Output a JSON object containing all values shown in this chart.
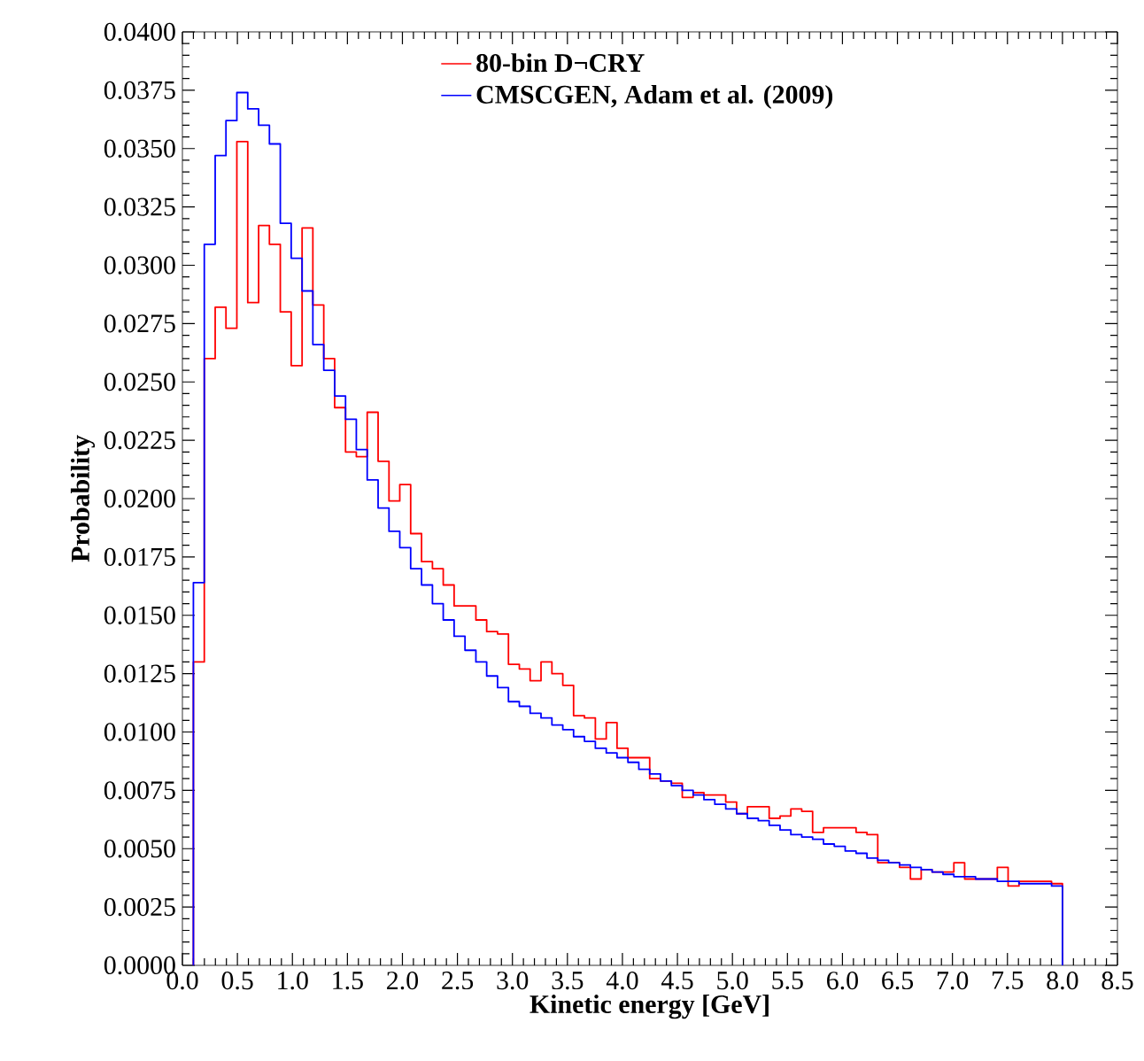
{
  "chart_data": {
    "type": "histogram",
    "xlabel": "Kinetic energy [GeV]",
    "ylabel": "Probability",
    "bins": [
      0.1,
      0.199,
      0.298,
      0.396,
      0.495,
      0.594,
      0.693,
      0.791,
      0.89,
      0.989,
      1.088,
      1.186,
      1.285,
      1.384,
      1.483,
      1.581,
      1.68,
      1.779,
      1.878,
      1.976,
      2.075,
      2.174,
      2.273,
      2.371,
      2.47,
      2.569,
      2.668,
      2.766,
      2.865,
      2.964,
      3.063,
      3.161,
      3.26,
      3.359,
      3.458,
      3.556,
      3.655,
      3.754,
      3.853,
      3.951,
      4.05,
      4.149,
      4.248,
      4.346,
      4.445,
      4.544,
      4.643,
      4.741,
      4.84,
      4.939,
      5.038,
      5.136,
      5.235,
      5.334,
      5.433,
      5.531,
      5.63,
      5.729,
      5.828,
      5.926,
      6.025,
      6.124,
      6.223,
      6.321,
      6.42,
      6.519,
      6.618,
      6.716,
      6.815,
      6.914,
      7.013,
      7.111,
      7.21,
      7.309,
      7.408,
      7.506,
      7.605,
      7.704,
      7.803,
      7.901,
      8.0
    ],
    "series": [
      {
        "name": "80-bin D¬CRY",
        "color": "#ff0000",
        "values": [
          0.013,
          0.026,
          0.0282,
          0.0273,
          0.0353,
          0.0284,
          0.0317,
          0.0309,
          0.028,
          0.0257,
          0.0316,
          0.0283,
          0.026,
          0.0239,
          0.022,
          0.0218,
          0.0237,
          0.0216,
          0.0199,
          0.0206,
          0.0185,
          0.0173,
          0.017,
          0.0163,
          0.0154,
          0.0154,
          0.0148,
          0.0143,
          0.0142,
          0.0129,
          0.0127,
          0.0122,
          0.013,
          0.0125,
          0.012,
          0.0107,
          0.0106,
          0.0097,
          0.0104,
          0.0093,
          0.0089,
          0.0089,
          0.008,
          0.0079,
          0.0078,
          0.0072,
          0.0074,
          0.0073,
          0.0073,
          0.007,
          0.0065,
          0.0068,
          0.0068,
          0.0063,
          0.0064,
          0.0067,
          0.0066,
          0.0057,
          0.0059,
          0.0059,
          0.0059,
          0.0057,
          0.0056,
          0.0044,
          0.0044,
          0.0042,
          0.0037,
          0.0041,
          0.004,
          0.004,
          0.0044,
          0.0037,
          0.0037,
          0.0037,
          0.0042,
          0.0034,
          0.0036,
          0.0036,
          0.0036,
          0.0035
        ]
      },
      {
        "name": "CMSCGEN, Adam et al. (2009)",
        "color": "#0000ff",
        "values": [
          0.0164,
          0.0309,
          0.0347,
          0.0362,
          0.0374,
          0.0367,
          0.036,
          0.0352,
          0.0318,
          0.0303,
          0.0289,
          0.0266,
          0.0255,
          0.0244,
          0.0234,
          0.0221,
          0.0208,
          0.0196,
          0.0186,
          0.0179,
          0.017,
          0.0163,
          0.0155,
          0.0148,
          0.0141,
          0.0135,
          0.013,
          0.0124,
          0.0119,
          0.0113,
          0.0111,
          0.0108,
          0.0106,
          0.0103,
          0.0101,
          0.0098,
          0.0096,
          0.0093,
          0.0091,
          0.0089,
          0.0087,
          0.0084,
          0.0082,
          0.0079,
          0.0077,
          0.0075,
          0.0073,
          0.0071,
          0.0069,
          0.0067,
          0.0065,
          0.0063,
          0.0062,
          0.006,
          0.0058,
          0.0056,
          0.0055,
          0.0054,
          0.0052,
          0.0051,
          0.0049,
          0.0048,
          0.0046,
          0.0045,
          0.0044,
          0.0043,
          0.0042,
          0.0041,
          0.004,
          0.0039,
          0.0038,
          0.0038,
          0.0037,
          0.0037,
          0.0036,
          0.0036,
          0.0035,
          0.0035,
          0.0035,
          0.0034
        ]
      }
    ],
    "xlim": [
      0,
      8.5
    ],
    "xticks": [
      {
        "value": 0,
        "label": "0.0"
      },
      {
        "value": 0.5,
        "label": "0.5"
      },
      {
        "value": 1,
        "label": "1.0"
      },
      {
        "value": 1.5,
        "label": "1.5"
      },
      {
        "value": 2,
        "label": "2.0"
      },
      {
        "value": 2.5,
        "label": "2.5"
      },
      {
        "value": 3,
        "label": "3.0"
      },
      {
        "value": 3.5,
        "label": "3.5"
      },
      {
        "value": 4,
        "label": "4.0"
      },
      {
        "value": 4.5,
        "label": "4.5"
      },
      {
        "value": 5,
        "label": "5.0"
      },
      {
        "value": 5.5,
        "label": "5.5"
      },
      {
        "value": 6,
        "label": "6.0"
      },
      {
        "value": 6.5,
        "label": "6.5"
      },
      {
        "value": 7,
        "label": "7.0"
      },
      {
        "value": 7.5,
        "label": "7.5"
      },
      {
        "value": 8,
        "label": "8.0"
      },
      {
        "value": 8.5,
        "label": "8.5"
      }
    ],
    "ylim": [
      0,
      0.04
    ],
    "yticks": [
      {
        "value": 0,
        "label": "0.0000"
      },
      {
        "value": 0.0025,
        "label": "0.0025"
      },
      {
        "value": 0.005,
        "label": "0.0050"
      },
      {
        "value": 0.0075,
        "label": "0.0075"
      },
      {
        "value": 0.01,
        "label": "0.0100"
      },
      {
        "value": 0.0125,
        "label": "0.0125"
      },
      {
        "value": 0.015,
        "label": "0.0150"
      },
      {
        "value": 0.0175,
        "label": "0.0175"
      },
      {
        "value": 0.02,
        "label": "0.0200"
      },
      {
        "value": 0.0225,
        "label": "0.0225"
      },
      {
        "value": 0.025,
        "label": "0.0250"
      },
      {
        "value": 0.0275,
        "label": "0.0275"
      },
      {
        "value": 0.03,
        "label": "0.0300"
      },
      {
        "value": 0.0325,
        "label": "0.0325"
      },
      {
        "value": 0.035,
        "label": "0.0350"
      },
      {
        "value": 0.0375,
        "label": "0.0375"
      },
      {
        "value": 0.04,
        "label": "0.0400"
      }
    ],
    "legend": "top right"
  }
}
